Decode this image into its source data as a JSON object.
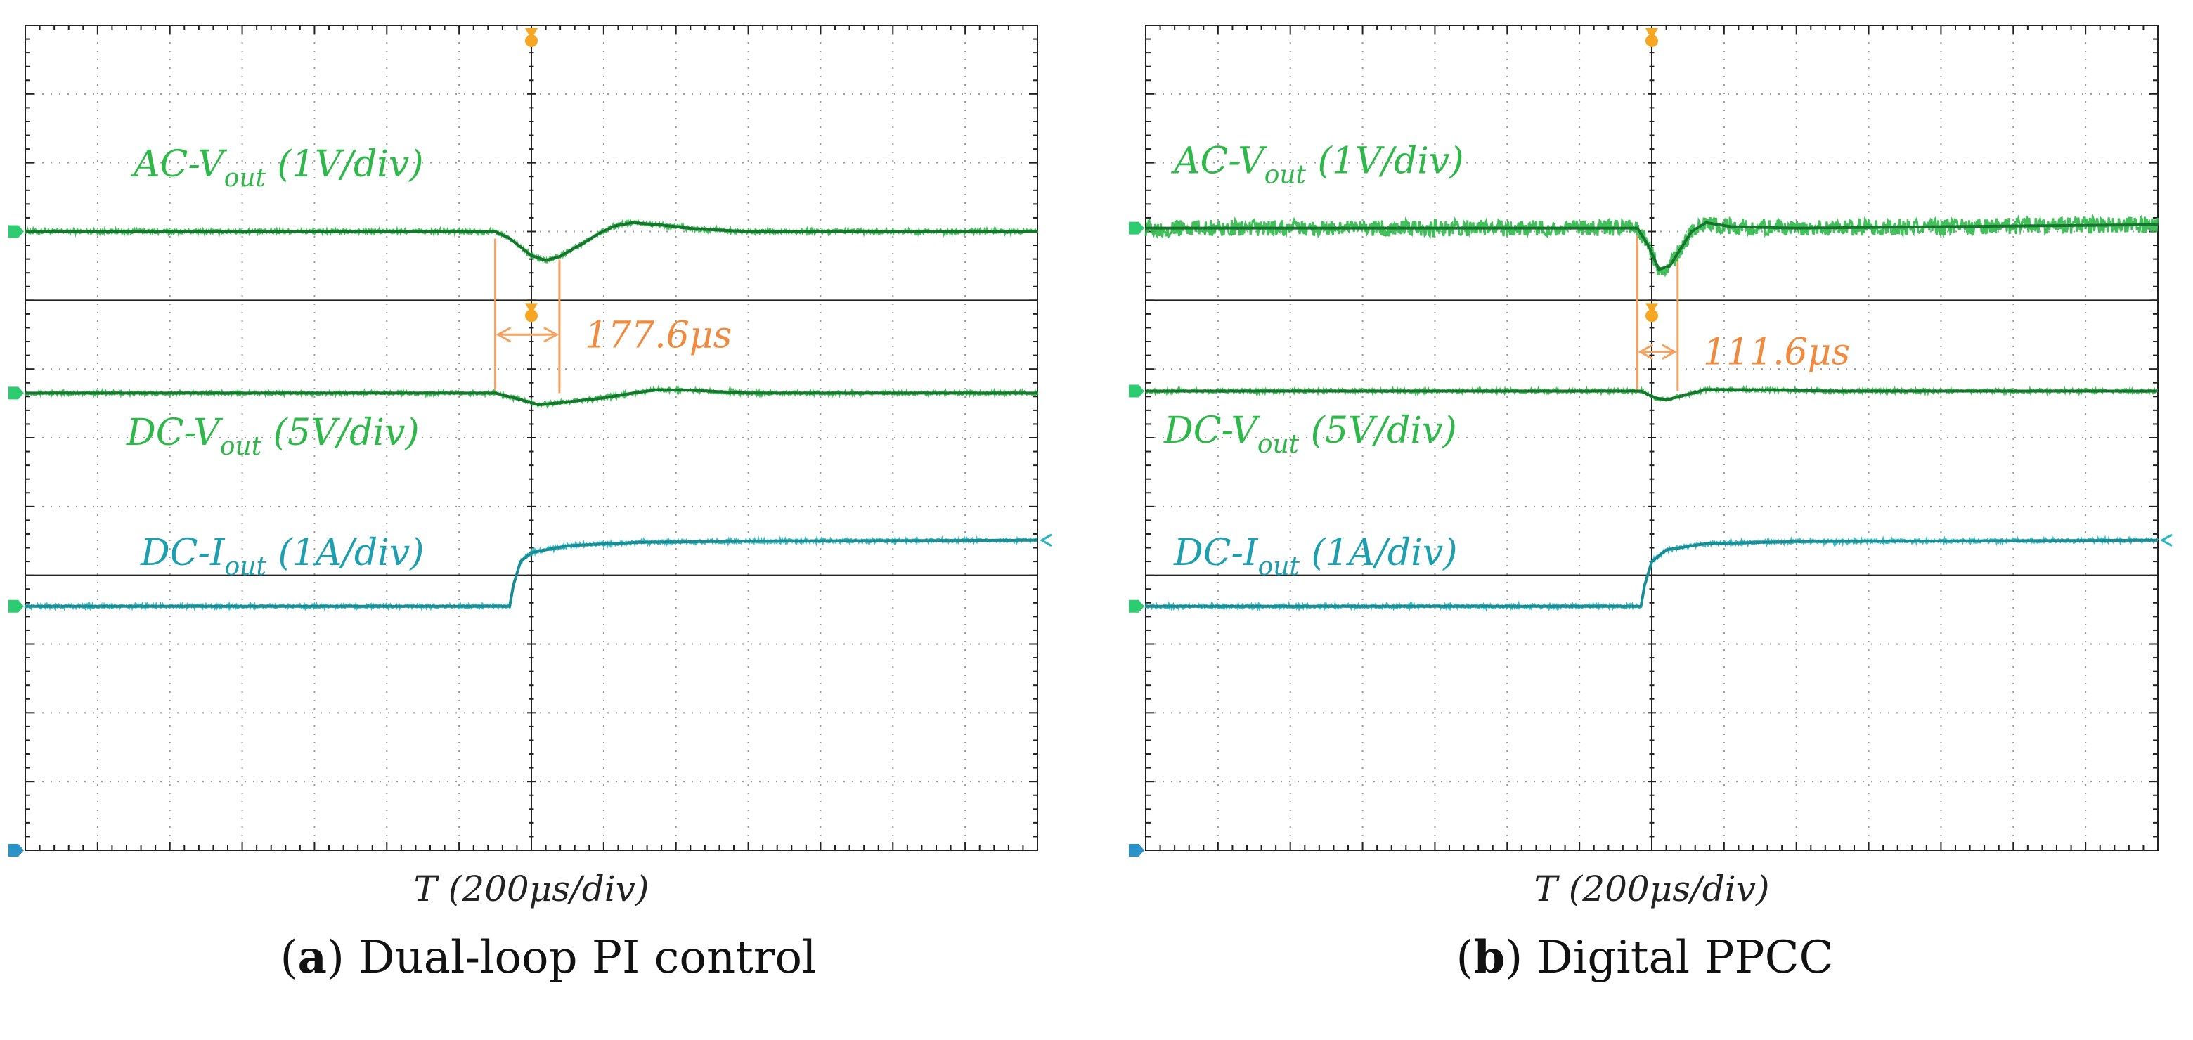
{
  "chart_data": [
    {
      "type": "line",
      "panel_label": "a",
      "caption": "Dual-loop PI control",
      "xlabel": "T (200μs/div)",
      "x_unit": "μs",
      "x_range": [
        -1400,
        1400
      ],
      "step_time": 0,
      "measurement": {
        "start": -100,
        "end": 77.6,
        "label": "177.6μs"
      },
      "series": [
        {
          "key": "ac",
          "label_main": "AC-V",
          "label_sub": "out",
          "label_rest": " (1V/div)",
          "color": "#2fb84a",
          "baseline_div": 3.0,
          "noise_div": 0.03,
          "points": [
            [
              -1400,
              0
            ],
            [
              -100,
              0
            ],
            [
              -60,
              -0.1
            ],
            [
              0,
              -0.35
            ],
            [
              40,
              -0.42
            ],
            [
              80,
              -0.36
            ],
            [
              140,
              -0.18
            ],
            [
              190,
              -0.02
            ],
            [
              230,
              0.08
            ],
            [
              280,
              0.13
            ],
            [
              350,
              0.1
            ],
            [
              450,
              0.04
            ],
            [
              600,
              0
            ],
            [
              1400,
              0
            ]
          ]
        },
        {
          "key": "dcv",
          "label_main": "DC-V",
          "label_sub": "out",
          "label_rest": " (5V/div)",
          "color": "#2fb84a",
          "baseline_div": 0.65,
          "noise_div": 0.025,
          "points": [
            [
              -1400,
              0
            ],
            [
              -100,
              0
            ],
            [
              -40,
              -0.08
            ],
            [
              20,
              -0.17
            ],
            [
              80,
              -0.14
            ],
            [
              200,
              -0.07
            ],
            [
              280,
              0
            ],
            [
              350,
              0.05
            ],
            [
              450,
              0.04
            ],
            [
              600,
              0
            ],
            [
              1400,
              0
            ]
          ]
        },
        {
          "key": "dci",
          "label_main": "DC-I",
          "label_sub": "out",
          "label_rest": " (1A/div)",
          "color": "#27b6bf",
          "baseline_div": -2.45,
          "noise_div": 0.025,
          "points": [
            [
              -1400,
              0
            ],
            [
              -60,
              0
            ],
            [
              -50,
              0.3
            ],
            [
              -30,
              0.65
            ],
            [
              0,
              0.78
            ],
            [
              100,
              0.88
            ],
            [
              300,
              0.93
            ],
            [
              700,
              0.95
            ],
            [
              1400,
              0.96
            ]
          ]
        }
      ]
    },
    {
      "type": "line",
      "panel_label": "b",
      "caption": "Digital PPCC",
      "xlabel": "T (200μs/div)",
      "x_unit": "μs",
      "x_range": [
        -1400,
        1400
      ],
      "step_time": 0,
      "measurement": {
        "start": -40,
        "end": 71.6,
        "label": "111.6μs"
      },
      "series": [
        {
          "key": "ac",
          "label_main": "AC-V",
          "label_sub": "out",
          "label_rest": " (1V/div)",
          "color": "#2fb84a",
          "baseline_div": 3.05,
          "noise_div": 0.12,
          "points": [
            [
              -1400,
              0
            ],
            [
              -40,
              0
            ],
            [
              -10,
              -0.25
            ],
            [
              20,
              -0.6
            ],
            [
              50,
              -0.55
            ],
            [
              80,
              -0.3
            ],
            [
              110,
              -0.05
            ],
            [
              150,
              0.08
            ],
            [
              220,
              0.02
            ],
            [
              400,
              0
            ],
            [
              1400,
              0.05
            ]
          ]
        },
        {
          "key": "dcv",
          "label_main": "DC-V",
          "label_sub": "out",
          "label_rest": " (5V/div)",
          "color": "#2fb84a",
          "baseline_div": 0.68,
          "noise_div": 0.025,
          "points": [
            [
              -1400,
              0
            ],
            [
              -30,
              0
            ],
            [
              10,
              -0.1
            ],
            [
              40,
              -0.13
            ],
            [
              90,
              -0.06
            ],
            [
              150,
              0.02
            ],
            [
              250,
              0.02
            ],
            [
              500,
              0
            ],
            [
              1400,
              0
            ]
          ]
        },
        {
          "key": "dci",
          "label_main": "DC-I",
          "label_sub": "out",
          "label_rest": " (1A/div)",
          "color": "#27b6bf",
          "baseline_div": -2.45,
          "noise_div": 0.025,
          "points": [
            [
              -1400,
              0
            ],
            [
              -30,
              0
            ],
            [
              -20,
              0.3
            ],
            [
              0,
              0.65
            ],
            [
              40,
              0.82
            ],
            [
              150,
              0.91
            ],
            [
              400,
              0.94
            ],
            [
              1400,
              0.96
            ]
          ]
        }
      ]
    }
  ]
}
